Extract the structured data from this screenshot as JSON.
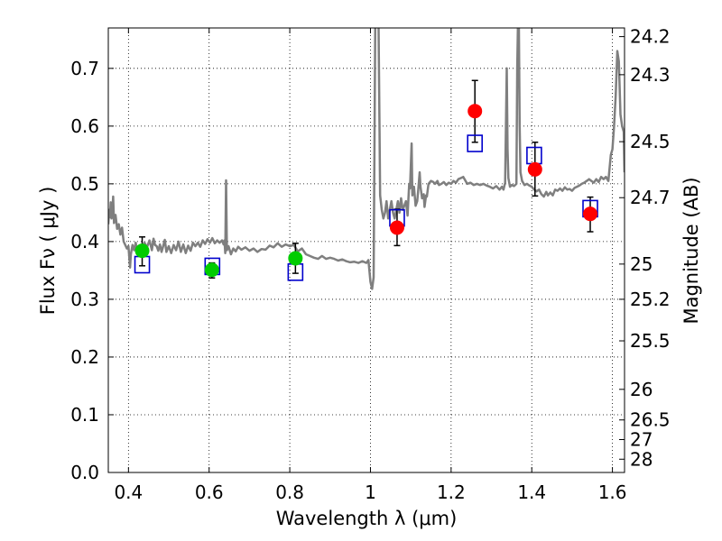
{
  "chart_data": {
    "type": "scatter",
    "xlabel": "Wavelength  λ (μm)",
    "ylabel": "Flux  Fν  ( μJy )",
    "ylabel_right": "Magnitude (AB)",
    "xlim": [
      0.35,
      1.63
    ],
    "ylim": [
      0.0,
      0.77
    ],
    "grid": true,
    "x_ticks": [
      0.4,
      0.6,
      0.8,
      1.0,
      1.2,
      1.4,
      1.6
    ],
    "x_tick_labels": [
      "0.4",
      "0.6",
      "0.8",
      "1",
      "1.2",
      "1.4",
      "1.6"
    ],
    "y_ticks": [
      0.0,
      0.1,
      0.2,
      0.3,
      0.4,
      0.5,
      0.6,
      0.7
    ],
    "y_tick_labels": [
      "0.0",
      "0.1",
      "0.2",
      "0.3",
      "0.4",
      "0.5",
      "0.6",
      "0.7"
    ],
    "right_ticks": [
      {
        "label": "24.2",
        "flux": 0.755
      },
      {
        "label": "24.3",
        "flux": 0.689
      },
      {
        "label": "24.5",
        "flux": 0.573
      },
      {
        "label": "24.7",
        "flux": 0.476
      },
      {
        "label": "25",
        "flux": 0.361
      },
      {
        "label": "25.2",
        "flux": 0.3
      },
      {
        "label": "25.5",
        "flux": 0.228
      },
      {
        "label": "26",
        "flux": 0.144
      },
      {
        "label": "26.5",
        "flux": 0.091
      },
      {
        "label": "27",
        "flux": 0.057
      },
      {
        "label": "28",
        "flux": 0.023
      }
    ],
    "series": [
      {
        "kind": "spectrum",
        "color": "#7f7f7f",
        "points": [
          [
            0.35,
            0.43
          ],
          [
            0.352,
            0.455
          ],
          [
            0.354,
            0.442
          ],
          [
            0.356,
            0.468
          ],
          [
            0.358,
            0.44
          ],
          [
            0.36,
            0.452
          ],
          [
            0.362,
            0.478
          ],
          [
            0.364,
            0.432
          ],
          [
            0.368,
            0.446
          ],
          [
            0.372,
            0.422
          ],
          [
            0.376,
            0.43
          ],
          [
            0.38,
            0.412
          ],
          [
            0.384,
            0.424
          ],
          [
            0.388,
            0.4
          ],
          [
            0.392,
            0.394
          ],
          [
            0.396,
            0.388
          ],
          [
            0.4,
            0.392
          ],
          [
            0.404,
            0.355
          ],
          [
            0.406,
            0.378
          ],
          [
            0.41,
            0.394
          ],
          [
            0.414,
            0.385
          ],
          [
            0.418,
            0.398
          ],
          [
            0.422,
            0.38
          ],
          [
            0.426,
            0.392
          ],
          [
            0.43,
            0.376
          ],
          [
            0.434,
            0.382
          ],
          [
            0.44,
            0.398
          ],
          [
            0.446,
            0.39
          ],
          [
            0.452,
            0.402
          ],
          [
            0.458,
            0.385
          ],
          [
            0.462,
            0.405
          ],
          [
            0.466,
            0.394
          ],
          [
            0.47,
            0.392
          ],
          [
            0.474,
            0.384
          ],
          [
            0.478,
            0.395
          ],
          [
            0.482,
            0.382
          ],
          [
            0.486,
            0.392
          ],
          [
            0.49,
            0.403
          ],
          [
            0.494,
            0.382
          ],
          [
            0.5,
            0.392
          ],
          [
            0.506,
            0.38
          ],
          [
            0.512,
            0.394
          ],
          [
            0.518,
            0.385
          ],
          [
            0.524,
            0.4
          ],
          [
            0.53,
            0.382
          ],
          [
            0.536,
            0.395
          ],
          [
            0.542,
            0.38
          ],
          [
            0.548,
            0.393
          ],
          [
            0.554,
            0.384
          ],
          [
            0.56,
            0.398
          ],
          [
            0.566,
            0.392
          ],
          [
            0.572,
            0.398
          ],
          [
            0.578,
            0.391
          ],
          [
            0.584,
            0.402
          ],
          [
            0.59,
            0.396
          ],
          [
            0.596,
            0.404
          ],
          [
            0.602,
            0.398
          ],
          [
            0.608,
            0.406
          ],
          [
            0.614,
            0.397
          ],
          [
            0.62,
            0.402
          ],
          [
            0.626,
            0.398
          ],
          [
            0.632,
            0.402
          ],
          [
            0.636,
            0.395
          ],
          [
            0.638,
            0.402
          ],
          [
            0.64,
            0.38
          ],
          [
            0.642,
            0.506
          ],
          [
            0.644,
            0.385
          ],
          [
            0.648,
            0.392
          ],
          [
            0.654,
            0.378
          ],
          [
            0.66,
            0.388
          ],
          [
            0.666,
            0.383
          ],
          [
            0.672,
            0.391
          ],
          [
            0.68,
            0.386
          ],
          [
            0.69,
            0.39
          ],
          [
            0.7,
            0.384
          ],
          [
            0.71,
            0.388
          ],
          [
            0.72,
            0.382
          ],
          [
            0.73,
            0.387
          ],
          [
            0.74,
            0.386
          ],
          [
            0.75,
            0.393
          ],
          [
            0.76,
            0.39
          ],
          [
            0.77,
            0.397
          ],
          [
            0.78,
            0.391
          ],
          [
            0.79,
            0.395
          ],
          [
            0.8,
            0.392
          ],
          [
            0.81,
            0.394
          ],
          [
            0.82,
            0.383
          ],
          [
            0.83,
            0.388
          ],
          [
            0.84,
            0.378
          ],
          [
            0.85,
            0.375
          ],
          [
            0.86,
            0.372
          ],
          [
            0.87,
            0.37
          ],
          [
            0.88,
            0.375
          ],
          [
            0.89,
            0.37
          ],
          [
            0.9,
            0.372
          ],
          [
            0.91,
            0.37
          ],
          [
            0.92,
            0.367
          ],
          [
            0.93,
            0.369
          ],
          [
            0.94,
            0.366
          ],
          [
            0.95,
            0.364
          ],
          [
            0.96,
            0.365
          ],
          [
            0.97,
            0.363
          ],
          [
            0.98,
            0.366
          ],
          [
            0.99,
            0.363
          ],
          [
            0.995,
            0.368
          ],
          [
            1.0,
            0.33
          ],
          [
            1.004,
            0.318
          ],
          [
            1.008,
            0.338
          ],
          [
            1.012,
            0.78
          ],
          [
            1.016,
            0.78
          ],
          [
            1.02,
            0.785
          ],
          [
            1.024,
            0.48
          ],
          [
            1.028,
            0.455
          ],
          [
            1.032,
            0.44
          ],
          [
            1.036,
            0.45
          ],
          [
            1.04,
            0.47
          ],
          [
            1.044,
            0.44
          ],
          [
            1.048,
            0.455
          ],
          [
            1.052,
            0.47
          ],
          [
            1.056,
            0.45
          ],
          [
            1.06,
            0.44
          ],
          [
            1.064,
            0.455
          ],
          [
            1.068,
            0.47
          ],
          [
            1.072,
            0.45
          ],
          [
            1.076,
            0.475
          ],
          [
            1.08,
            0.455
          ],
          [
            1.084,
            0.462
          ],
          [
            1.088,
            0.47
          ],
          [
            1.092,
            0.445
          ],
          [
            1.096,
            0.5
          ],
          [
            1.098,
            0.492
          ],
          [
            1.102,
            0.57
          ],
          [
            1.104,
            0.48
          ],
          [
            1.108,
            0.495
          ],
          [
            1.112,
            0.462
          ],
          [
            1.116,
            0.47
          ],
          [
            1.118,
            0.485
          ],
          [
            1.122,
            0.52
          ],
          [
            1.124,
            0.495
          ],
          [
            1.128,
            0.475
          ],
          [
            1.132,
            0.482
          ],
          [
            1.134,
            0.46
          ],
          [
            1.138,
            0.48
          ],
          [
            1.14,
            0.478
          ],
          [
            1.144,
            0.5
          ],
          [
            1.15,
            0.505
          ],
          [
            1.156,
            0.503
          ],
          [
            1.16,
            0.5
          ],
          [
            1.166,
            0.505
          ],
          [
            1.17,
            0.498
          ],
          [
            1.176,
            0.5
          ],
          [
            1.182,
            0.503
          ],
          [
            1.188,
            0.498
          ],
          [
            1.194,
            0.502
          ],
          [
            1.2,
            0.5
          ],
          [
            1.206,
            0.505
          ],
          [
            1.212,
            0.502
          ],
          [
            1.218,
            0.508
          ],
          [
            1.224,
            0.51
          ],
          [
            1.23,
            0.512
          ],
          [
            1.236,
            0.505
          ],
          [
            1.24,
            0.5
          ],
          [
            1.248,
            0.502
          ],
          [
            1.256,
            0.498
          ],
          [
            1.264,
            0.5
          ],
          [
            1.272,
            0.498
          ],
          [
            1.28,
            0.5
          ],
          [
            1.288,
            0.497
          ],
          [
            1.296,
            0.495
          ],
          [
            1.304,
            0.492
          ],
          [
            1.312,
            0.496
          ],
          [
            1.32,
            0.49
          ],
          [
            1.326,
            0.495
          ],
          [
            1.33,
            0.49
          ],
          [
            1.334,
            0.502
          ],
          [
            1.338,
            0.7
          ],
          [
            1.34,
            0.56
          ],
          [
            1.342,
            0.51
          ],
          [
            1.346,
            0.495
          ],
          [
            1.35,
            0.498
          ],
          [
            1.356,
            0.496
          ],
          [
            1.362,
            0.5
          ],
          [
            1.364,
            0.7
          ],
          [
            1.366,
            0.785
          ],
          [
            1.368,
            0.78
          ],
          [
            1.37,
            0.6
          ],
          [
            1.372,
            0.52
          ],
          [
            1.376,
            0.505
          ],
          [
            1.382,
            0.498
          ],
          [
            1.388,
            0.5
          ],
          [
            1.394,
            0.497
          ],
          [
            1.4,
            0.495
          ],
          [
            1.406,
            0.49
          ],
          [
            1.412,
            0.487
          ],
          [
            1.418,
            0.49
          ],
          [
            1.424,
            0.482
          ],
          [
            1.43,
            0.478
          ],
          [
            1.436,
            0.486
          ],
          [
            1.44,
            0.48
          ],
          [
            1.446,
            0.485
          ],
          [
            1.452,
            0.48
          ],
          [
            1.458,
            0.49
          ],
          [
            1.464,
            0.488
          ],
          [
            1.47,
            0.492
          ],
          [
            1.476,
            0.488
          ],
          [
            1.482,
            0.494
          ],
          [
            1.488,
            0.49
          ],
          [
            1.494,
            0.491
          ],
          [
            1.5,
            0.488
          ],
          [
            1.506,
            0.493
          ],
          [
            1.512,
            0.495
          ],
          [
            1.518,
            0.497
          ],
          [
            1.524,
            0.5
          ],
          [
            1.53,
            0.502
          ],
          [
            1.536,
            0.505
          ],
          [
            1.542,
            0.508
          ],
          [
            1.548,
            0.505
          ],
          [
            1.554,
            0.502
          ],
          [
            1.56,
            0.508
          ],
          [
            1.566,
            0.503
          ],
          [
            1.572,
            0.512
          ],
          [
            1.578,
            0.508
          ],
          [
            1.584,
            0.512
          ],
          [
            1.59,
            0.505
          ],
          [
            1.596,
            0.55
          ],
          [
            1.6,
            0.56
          ],
          [
            1.604,
            0.6
          ],
          [
            1.608,
            0.652
          ],
          [
            1.612,
            0.73
          ],
          [
            1.616,
            0.712
          ],
          [
            1.62,
            0.62
          ],
          [
            1.624,
            0.6
          ],
          [
            1.628,
            0.59
          ],
          [
            1.63,
            0.52
          ]
        ]
      },
      {
        "kind": "model-boxes",
        "color": "#0000cc",
        "points": [
          [
            0.434,
            0.36
          ],
          [
            0.608,
            0.357
          ],
          [
            0.814,
            0.347
          ],
          [
            1.066,
            0.441
          ],
          [
            1.259,
            0.57
          ],
          [
            1.406,
            0.549
          ],
          [
            1.545,
            0.457
          ]
        ]
      },
      {
        "kind": "optical-data",
        "color": "#00cc00",
        "points": [
          {
            "x": 0.434,
            "y": 0.384,
            "lo": 0.358,
            "hi": 0.408
          },
          {
            "x": 0.607,
            "y": 0.351,
            "lo": 0.337,
            "hi": 0.363
          },
          {
            "x": 0.814,
            "y": 0.371,
            "lo": 0.345,
            "hi": 0.397
          }
        ]
      },
      {
        "kind": "nir-data",
        "color": "#ff0000",
        "points": [
          {
            "x": 1.066,
            "y": 0.424,
            "lo": 0.393,
            "hi": 0.456
          },
          {
            "x": 1.259,
            "y": 0.626,
            "lo": 0.572,
            "hi": 0.679
          },
          {
            "x": 1.408,
            "y": 0.525,
            "lo": 0.479,
            "hi": 0.572
          },
          {
            "x": 1.545,
            "y": 0.448,
            "lo": 0.417,
            "hi": 0.477
          }
        ]
      }
    ]
  }
}
